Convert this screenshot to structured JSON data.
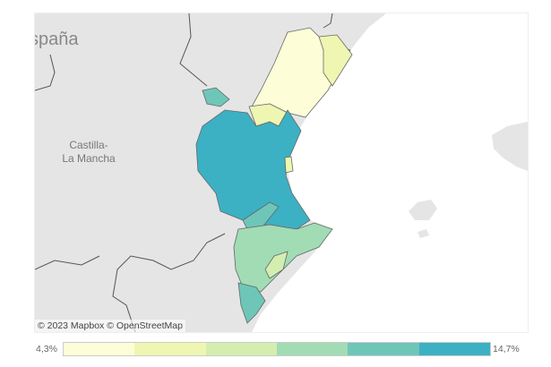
{
  "map": {
    "place_labels": {
      "country": "spaña",
      "region": "Castilla-\nLa Mancha"
    },
    "attribution": "© 2023 Mapbox  © OpenStreetMap",
    "colors": {
      "land": "#e5e5e5",
      "sea": "#ffffff",
      "border": "#555555"
    }
  },
  "legend": {
    "min_label": "4,3%",
    "max_label": "14,7%",
    "bins": [
      "#fdfed8",
      "#eef6b1",
      "#d4eeb0",
      "#a1dcb5",
      "#6ec6b9",
      "#3cb1c3"
    ]
  }
}
